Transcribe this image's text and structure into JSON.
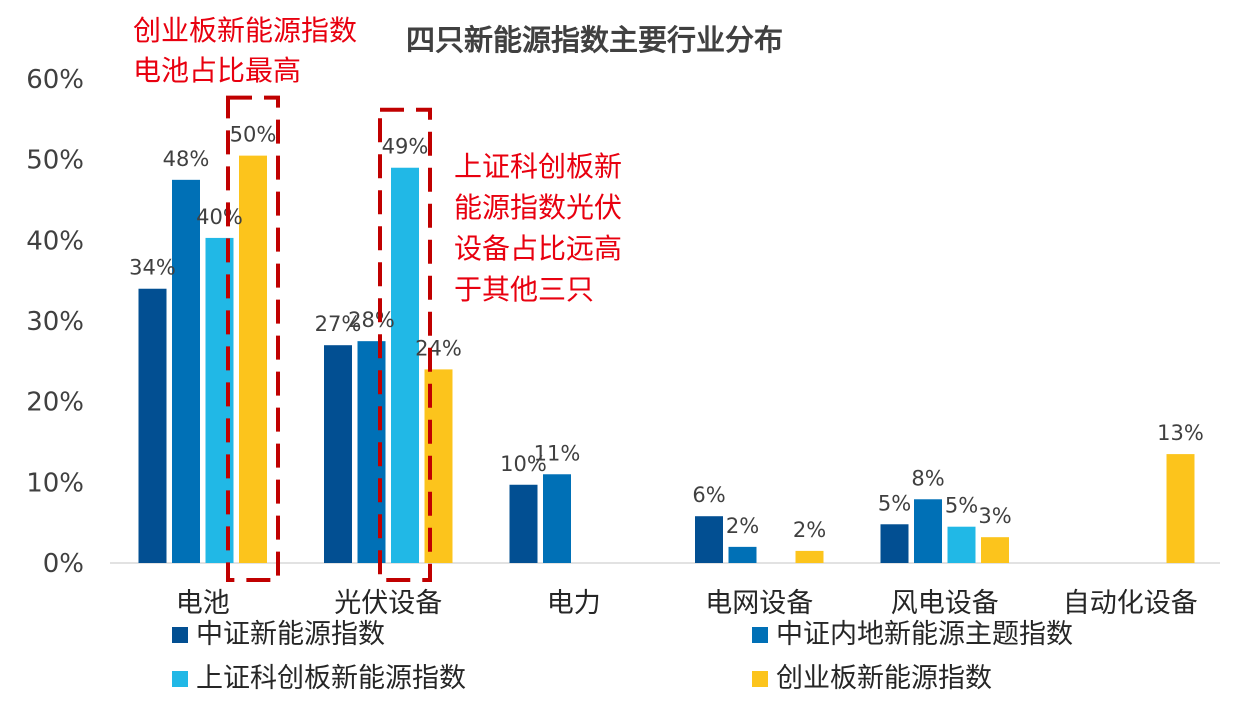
{
  "chart_data": {
    "type": "bar",
    "title": "四只新能源指数主要行业分布",
    "categories": [
      "电池",
      "光伏设备",
      "电力",
      "电网设备",
      "风电设备",
      "自动化设备"
    ],
    "ylim": [
      0,
      0.6
    ],
    "yticks": [
      "0%",
      "10%",
      "20%",
      "30%",
      "40%",
      "50%",
      "60%"
    ],
    "grid": false,
    "legend_position": "bottom",
    "series": [
      {
        "name": "中证新能源指数",
        "color": "#024f92",
        "values": [
          0.34,
          0.27,
          0.097,
          0.058,
          0.048,
          null
        ],
        "labels": [
          "34%",
          "27%",
          "10%",
          "6%",
          "5%",
          ""
        ]
      },
      {
        "name": "中证内地新能源主题指数",
        "color": "#0070b6",
        "values": [
          0.475,
          0.275,
          0.11,
          0.02,
          0.079,
          null
        ],
        "labels": [
          "48%",
          "28%",
          "11%",
          "2%",
          "8%",
          ""
        ]
      },
      {
        "name": "上证科创板新能源指数",
        "color": "#21b8e6",
        "values": [
          0.403,
          0.49,
          null,
          null,
          0.045,
          null
        ],
        "labels": [
          "40%",
          "49%",
          "",
          "",
          "5%",
          ""
        ]
      },
      {
        "name": "创业板新能源指数",
        "color": "#fcc41c",
        "values": [
          0.505,
          0.24,
          null,
          0.015,
          0.032,
          0.135
        ],
        "labels": [
          "50%",
          "24%",
          "",
          "2%",
          "3%",
          "13%"
        ]
      }
    ],
    "annotations": [
      {
        "lines": [
          "创业板新能源指数",
          "电池占比最高"
        ],
        "color": "#e8000f"
      },
      {
        "lines": [
          "上证科创板新",
          "能源指数光伏",
          "设备占比远高",
          "于其他三只"
        ],
        "color": "#e8000f"
      }
    ],
    "highlight_box_color": "#c00000"
  }
}
